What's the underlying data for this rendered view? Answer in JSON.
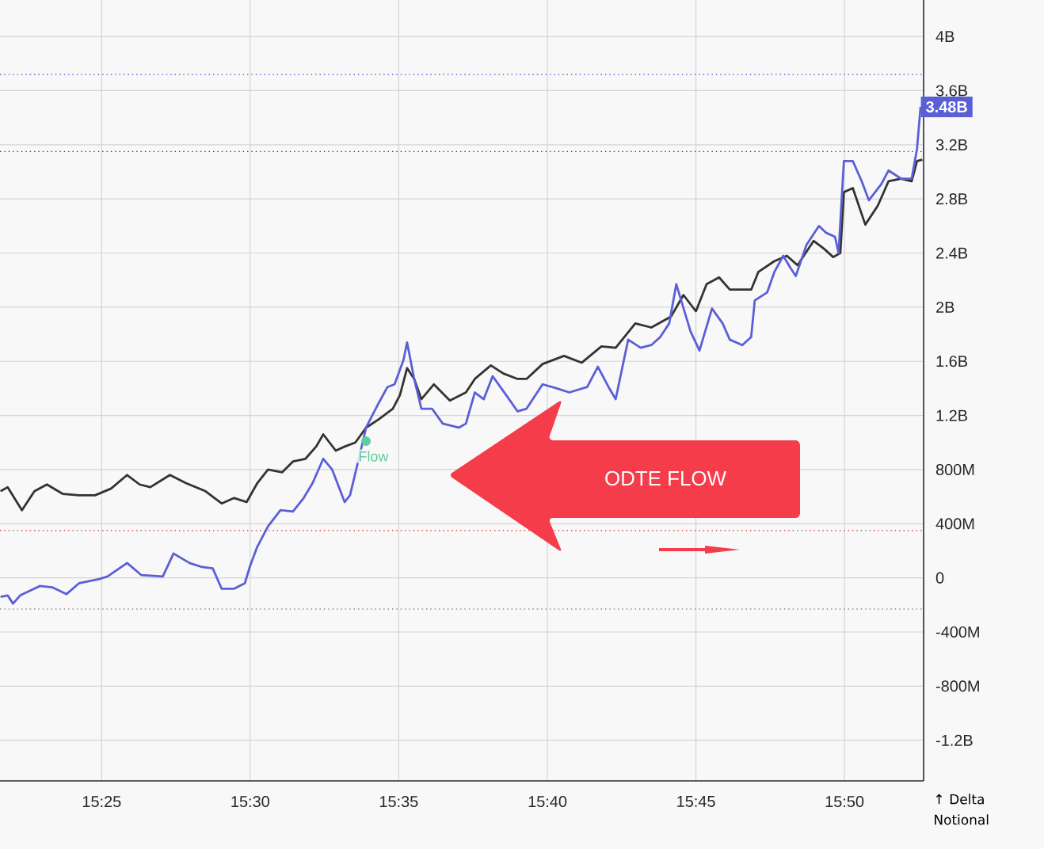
{
  "chart_data": {
    "type": "line",
    "ylabel": "↑ Delta Notional",
    "annotations": [
      "ODTE FLOW",
      {
        "text": "3.48B",
        "x": 15.876,
        "y": 3480000000.0
      }
    ],
    "xlim": [
      15.3597,
      15.8777
    ],
    "ylim": [
      -1500000000.0,
      4270000000.0
    ],
    "xticks": [
      {
        "value": 15.4167,
        "label": "15:25"
      },
      {
        "value": 15.5,
        "label": "15:30"
      },
      {
        "value": 15.5833,
        "label": "15:35"
      },
      {
        "value": 15.6667,
        "label": "15:40"
      },
      {
        "value": 15.75,
        "label": "15:45"
      },
      {
        "value": 15.8333,
        "label": "15:50"
      }
    ],
    "yticks": [
      {
        "value": -1200000000.0,
        "label": "-1.2B"
      },
      {
        "value": -800000000.0,
        "label": "-800M"
      },
      {
        "value": -400000000.0,
        "label": "-400M"
      },
      0,
      {
        "value": 400000000.0,
        "label": "400M"
      },
      {
        "value": 800000000.0,
        "label": "800M"
      },
      {
        "value": 1200000000.0,
        "label": "1.2B"
      },
      {
        "value": 1600000000.0,
        "label": "1.6B"
      },
      {
        "value": 2000000000.0,
        "label": "2B"
      },
      {
        "value": 2400000000.0,
        "label": "2.4B"
      },
      {
        "value": 2800000000.0,
        "label": "2.8B"
      },
      {
        "value": 3200000000.0,
        "label": "3.2B"
      },
      {
        "value": 3600000000.0,
        "label": "3.6B"
      },
      {
        "value": 4000000000.0,
        "label": "4B"
      }
    ],
    "grid": true,
    "legend": false,
    "line_style": "solid",
    "ref_lines": [
      {
        "axis": "y",
        "value": 3720000000.0,
        "color": "#5b5fd6",
        "line_style": "dotted"
      },
      {
        "axis": "y",
        "value": 3150000000.0,
        "color": "#333333",
        "line_style": "dotted"
      },
      {
        "axis": "y",
        "value": 350000000.0,
        "color": "#d62020",
        "line_style": "dotted"
      },
      {
        "axis": "y",
        "value": -230000000.0,
        "color": "#888888",
        "line_style": "dotted"
      }
    ],
    "series": [
      {
        "color": "#333333",
        "x": [
          15.36,
          15.364,
          15.372,
          15.379,
          15.386,
          15.395,
          15.404,
          15.413,
          15.422,
          15.431,
          15.438,
          15.444,
          15.455,
          15.464,
          15.475,
          15.484,
          15.491,
          15.498,
          15.504,
          15.51,
          15.518,
          15.524,
          15.531,
          15.537,
          15.541,
          15.548,
          15.553,
          15.559,
          15.565,
          15.572,
          15.58,
          15.584,
          15.588,
          15.592,
          15.596,
          15.603,
          15.612,
          15.621,
          15.626,
          15.635,
          15.642,
          15.65,
          15.655,
          15.664,
          15.676,
          15.686,
          15.697,
          15.705,
          15.716,
          15.725,
          15.736,
          15.743,
          15.75,
          15.756,
          15.763,
          15.769,
          15.781,
          15.785,
          15.794,
          15.801,
          15.807,
          15.816,
          15.822,
          15.827,
          15.831,
          15.833,
          15.838,
          15.845,
          15.852,
          15.858,
          15.865,
          15.871,
          15.874,
          15.877
        ],
        "values": [
          640000000.0,
          670000000.0,
          500000000.0,
          640000000.0,
          690000000.0,
          620000000.0,
          610000000.0,
          610000000.0,
          660000000.0,
          760000000.0,
          690000000.0,
          670000000.0,
          760000000.0,
          700000000.0,
          640000000.0,
          550000000.0,
          590000000.0,
          560000000.0,
          700000000.0,
          800000000.0,
          780000000.0,
          860000000.0,
          880000000.0,
          970000000.0,
          1060000000.0,
          940000000.0,
          970000000.0,
          1000000000.0,
          1110000000.0,
          1170000000.0,
          1250000000.0,
          1350000000.0,
          1550000000.0,
          1470000000.0,
          1320000000.0,
          1430000000.0,
          1310000000.0,
          1370000000.0,
          1470000000.0,
          1570000000.0,
          1510000000.0,
          1470000000.0,
          1470000000.0,
          1580000000.0,
          1640000000.0,
          1590000000.0,
          1710000000.0,
          1700000000.0,
          1880000000.0,
          1850000000.0,
          1930000000.0,
          2090000000.0,
          1970000000.0,
          2170000000.0,
          2220000000.0,
          2130000000.0,
          2130000000.0,
          2260000000.0,
          2340000000.0,
          2380000000.0,
          2310000000.0,
          2490000000.0,
          2430000000.0,
          2370000000.0,
          2400000000.0,
          2850000000.0,
          2880000000.0,
          2610000000.0,
          2750000000.0,
          2930000000.0,
          2950000000.0,
          2930000000.0,
          3080000000.0,
          3090000000.0
        ]
      },
      {
        "color": "#5b5fd6",
        "x": [
          15.36,
          15.364,
          15.367,
          15.371,
          15.382,
          15.389,
          15.397,
          15.404,
          15.415,
          15.42,
          15.431,
          15.439,
          15.451,
          15.457,
          15.466,
          15.473,
          15.479,
          15.484,
          15.491,
          15.497,
          15.5,
          15.504,
          15.51,
          15.517,
          15.524,
          15.53,
          15.535,
          15.541,
          15.546,
          15.553,
          15.556,
          15.562,
          15.565,
          15.572,
          15.577,
          15.581,
          15.586,
          15.588,
          15.592,
          15.596,
          15.602,
          15.608,
          15.617,
          15.621,
          15.626,
          15.631,
          15.636,
          15.642,
          15.65,
          15.655,
          15.664,
          15.672,
          15.679,
          15.689,
          15.695,
          15.701,
          15.705,
          15.712,
          15.719,
          15.725,
          15.73,
          15.735,
          15.739,
          15.747,
          15.752,
          15.759,
          15.765,
          15.769,
          15.776,
          15.781,
          15.783,
          15.79,
          15.794,
          15.799,
          15.803,
          15.806,
          15.812,
          15.819,
          15.823,
          15.828,
          15.83,
          15.833,
          15.838,
          15.843,
          15.847,
          15.854,
          15.858,
          15.865,
          15.871,
          15.874,
          15.876
        ],
        "values": [
          -140000000.0,
          -130000000.0,
          -190000000.0,
          -130000000.0,
          -60000000.0,
          -70000000.0,
          -120000000.0,
          -40000000.0,
          -10000000.0,
          10000000.0,
          110000000.0,
          20000000.0,
          10000000.0,
          180000000.0,
          110000000.0,
          80000000.0,
          70000000.0,
          -80000000.0,
          -80000000.0,
          -40000000.0,
          90000000.0,
          230000000.0,
          380000000.0,
          500000000.0,
          490000000.0,
          590000000.0,
          700000000.0,
          880000000.0,
          800000000.0,
          560000000.0,
          610000000.0,
          940000000.0,
          1110000000.0,
          1290000000.0,
          1410000000.0,
          1430000000.0,
          1610000000.0,
          1740000000.0,
          1470000000.0,
          1250000000.0,
          1250000000.0,
          1140000000.0,
          1110000000.0,
          1140000000.0,
          1370000000.0,
          1320000000.0,
          1490000000.0,
          1380000000.0,
          1230000000.0,
          1250000000.0,
          1430000000.0,
          1400000000.0,
          1370000000.0,
          1410000000.0,
          1560000000.0,
          1410000000.0,
          1320000000.0,
          1760000000.0,
          1700000000.0,
          1720000000.0,
          1780000000.0,
          1880000000.0,
          2170000000.0,
          1820000000.0,
          1680000000.0,
          1990000000.0,
          1880000000.0,
          1760000000.0,
          1720000000.0,
          1780000000.0,
          2050000000.0,
          2110000000.0,
          2260000000.0,
          2380000000.0,
          2290000000.0,
          2230000000.0,
          2460000000.0,
          2600000000.0,
          2550000000.0,
          2520000000.0,
          2400000000.0,
          3080000000.0,
          3080000000.0,
          2930000000.0,
          2790000000.0,
          2910000000.0,
          3010000000.0,
          2950000000.0,
          2950000000.0,
          3170000000.0,
          3480000000.0
        ]
      },
      {
        "type": "scatter",
        "name": "Flow",
        "color": "#5ecf9a",
        "marker": "circle",
        "x": [
          15.565
        ],
        "values": [
          1010000000.0
        ]
      }
    ]
  }
}
